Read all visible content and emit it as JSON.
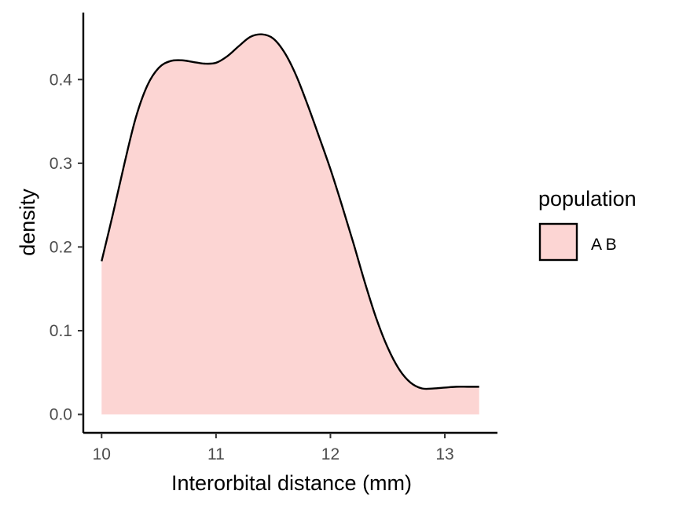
{
  "chart_data": {
    "type": "area",
    "xlabel": "Interorbital distance (mm)",
    "ylabel": "density",
    "xlim": [
      9.84,
      13.46
    ],
    "ylim": [
      -0.022,
      0.48
    ],
    "x_ticks": [
      10,
      11,
      12,
      13
    ],
    "x_tick_labels": [
      "10",
      "11",
      "12",
      "13"
    ],
    "y_ticks": [
      0.0,
      0.1,
      0.2,
      0.3,
      0.4
    ],
    "y_tick_labels": [
      "0.0",
      "0.1",
      "0.2",
      "0.3",
      "0.4"
    ],
    "grid": false,
    "legend_position": "right",
    "legend": {
      "title": "population",
      "entries": [
        {
          "label": "A B",
          "fill": "#fcd5d3"
        }
      ]
    },
    "series": [
      {
        "name": "A B",
        "x": [
          10.0,
          10.1,
          10.2,
          10.3,
          10.4,
          10.5,
          10.6,
          10.7,
          10.8,
          10.9,
          11.0,
          11.1,
          11.2,
          11.3,
          11.4,
          11.5,
          11.6,
          11.7,
          11.8,
          11.9,
          12.0,
          12.1,
          12.2,
          12.3,
          12.4,
          12.5,
          12.6,
          12.7,
          12.8,
          12.9,
          13.0,
          13.1,
          13.2,
          13.3
        ],
        "y": [
          0.183,
          0.24,
          0.3,
          0.355,
          0.393,
          0.414,
          0.422,
          0.423,
          0.421,
          0.419,
          0.42,
          0.428,
          0.44,
          0.451,
          0.454,
          0.449,
          0.432,
          0.405,
          0.37,
          0.332,
          0.293,
          0.25,
          0.205,
          0.158,
          0.115,
          0.08,
          0.054,
          0.038,
          0.031,
          0.031,
          0.032,
          0.033,
          0.033,
          0.033
        ]
      }
    ],
    "colors": {
      "fill": "#fcd5d3",
      "line": "#000000"
    }
  }
}
